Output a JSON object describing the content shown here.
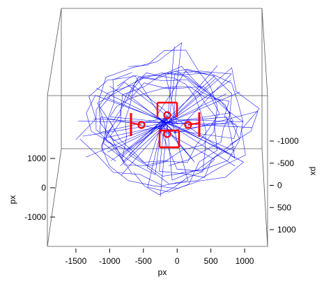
{
  "chart_data": {
    "type": "3d-scatter-box",
    "title": "",
    "xlabel": "px",
    "ylabel": "px",
    "zlabel": "px",
    "xticks": [
      "-1500",
      "-1000",
      "-500",
      "0",
      "500",
      "1000"
    ],
    "xtick_values": [
      -1500,
      -1000,
      -500,
      0,
      500,
      1000
    ],
    "xlim": [
      -1850,
      1350
    ],
    "yticks": [
      "1000",
      "0",
      "-1000"
    ],
    "ytick_values": [
      1000,
      0,
      -1000
    ],
    "zticks": [
      "-1000",
      "-500",
      "0",
      "500",
      "1000"
    ],
    "ztick_values": [
      -1000,
      -500,
      0,
      500,
      1000
    ],
    "zlim": [
      -1200,
      1200
    ],
    "grid": false,
    "series": [
      {
        "color": "#0000ff",
        "kind": "trajectory",
        "description_points": 60
      },
      {
        "color": "#ff0000",
        "kind": "markers",
        "points": [
          {
            "x": -30,
            "y": 0,
            "z": -1000,
            "symbol": "circle"
          },
          {
            "x": -30,
            "y": 0,
            "z": -600,
            "symbol": "circle"
          },
          {
            "x": -450,
            "y": 0,
            "z": -800,
            "symbol": "circle"
          },
          {
            "x": 340,
            "y": 0,
            "z": -800,
            "symbol": "circle"
          }
        ]
      }
    ]
  }
}
